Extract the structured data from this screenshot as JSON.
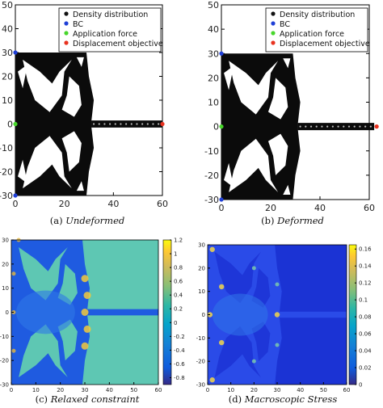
{
  "chart_data": [
    {
      "type": "scatter",
      "panel": "a",
      "caption_prefix": "(a) ",
      "caption_title": "Undeformed",
      "xlim": [
        0,
        60
      ],
      "ylim": [
        -30,
        50
      ],
      "xticks": [
        "0",
        "20",
        "40",
        "60"
      ],
      "yticks": [
        "50",
        "40",
        "30",
        "20",
        "10",
        "0",
        "-10",
        "-20",
        "-30"
      ],
      "legend": [
        "Density distribution",
        "BC",
        "Application force",
        "Displacement objective"
      ],
      "legend_colors": [
        "#111111",
        "#1f3fd6",
        "#47d62b",
        "#e8321f"
      ],
      "legend_position": "top-right",
      "bc_points": [
        [
          0,
          30
        ],
        [
          0,
          -30
        ]
      ],
      "force_point": [
        0,
        0
      ],
      "objective_point": [
        60,
        0
      ],
      "beam_end_x": 60
    },
    {
      "type": "scatter",
      "panel": "b",
      "caption_prefix": "(b) ",
      "caption_title": "Deformed",
      "xlim": [
        0,
        60
      ],
      "ylim": [
        -30,
        50
      ],
      "xticks": [
        "0",
        "20",
        "40",
        "60"
      ],
      "yticks": [
        "50",
        "40",
        "30",
        "20",
        "10",
        "0",
        "-10",
        "-20",
        "-30"
      ],
      "legend": [
        "Density distribution",
        "BC",
        "Application force",
        "Displacement objective"
      ],
      "legend_colors": [
        "#111111",
        "#1f3fd6",
        "#47d62b",
        "#e8321f"
      ],
      "legend_position": "top-right",
      "bc_points": [
        [
          0,
          30
        ],
        [
          0,
          -30
        ]
      ],
      "force_point": [
        0,
        0
      ],
      "objective_point": [
        63,
        0
      ],
      "beam_end_x": 62
    },
    {
      "type": "heatmap",
      "panel": "c",
      "caption_prefix": "(c) ",
      "caption_title": "Relaxed constraint",
      "xlim": [
        0,
        60
      ],
      "ylim": [
        -30,
        30
      ],
      "xticks": [
        "0",
        "10",
        "20",
        "30",
        "40",
        "50",
        "60"
      ],
      "yticks": [
        "30",
        "20",
        "10",
        "0",
        "-10",
        "-20",
        "-30"
      ],
      "colorbar_ticks": [
        "1.2",
        "1",
        "0.8",
        "0.6",
        "0.4",
        "0.2",
        "0",
        "-0.2",
        "-0.4",
        "-0.6",
        "-0.8"
      ],
      "colorbar_range": [
        -0.9,
        1.2
      ]
    },
    {
      "type": "heatmap",
      "panel": "d",
      "caption_prefix": "(d) ",
      "caption_title": "Macroscopic Stress",
      "xlim": [
        0,
        60
      ],
      "ylim": [
        -30,
        30
      ],
      "xticks": [
        "0",
        "10",
        "20",
        "30",
        "40",
        "50",
        "60"
      ],
      "yticks": [
        "30",
        "20",
        "10",
        "0",
        "-10",
        "-20",
        "-30"
      ],
      "colorbar_ticks": [
        "0.16",
        "0.14",
        "0.12",
        "0.1",
        "0.08",
        "0.06",
        "0.04",
        "0.02",
        "0"
      ],
      "colorbar_range": [
        0,
        0.165
      ]
    }
  ]
}
